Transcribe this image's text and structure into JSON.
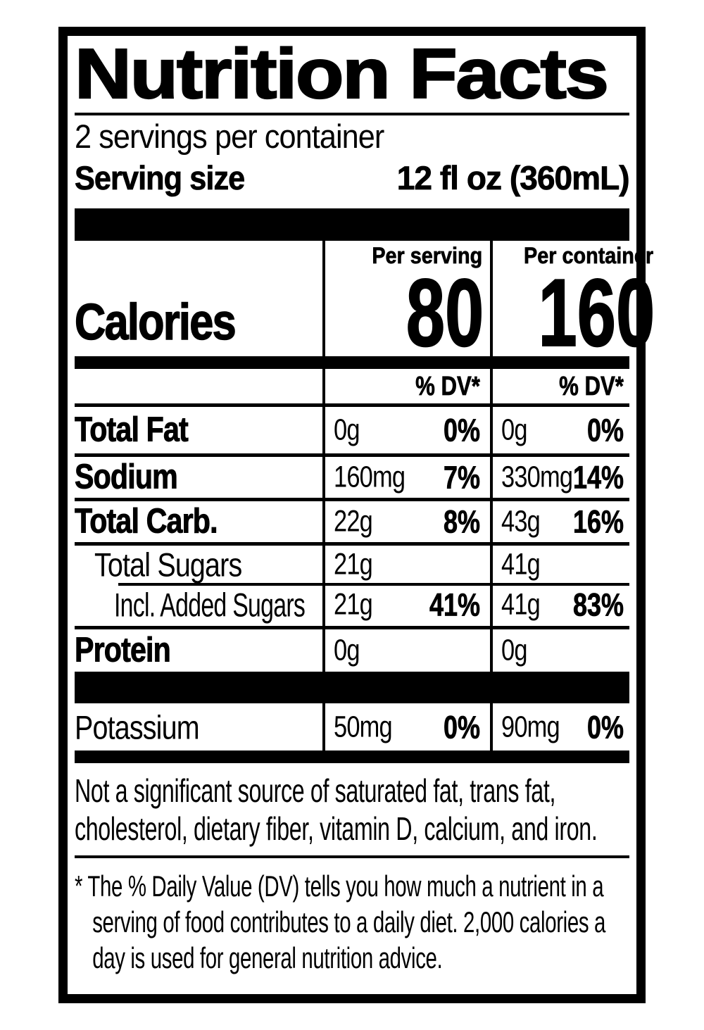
{
  "label": {
    "title": "Nutrition Facts",
    "servings_per_container": "2 servings per container",
    "serving_size": {
      "label": "Serving size",
      "value": "12 fl oz (360mL)"
    },
    "calories": {
      "name": "Calories",
      "per_serving_header": "Per serving",
      "per_container_header": "Per container",
      "per_serving_value": "80",
      "per_container_value": "160"
    },
    "dv_header": "% DV*",
    "nutrients": [
      {
        "name": "Total Fat",
        "serving_amount": "0g",
        "serving_dv": "0%",
        "container_amount": "0g",
        "container_dv": "0%"
      },
      {
        "name": "Sodium",
        "serving_amount": "160mg",
        "serving_dv": "7%",
        "container_amount": "330mg",
        "container_dv": "14%"
      },
      {
        "name": "Total Carb.",
        "serving_amount": "22g",
        "serving_dv": "8%",
        "container_amount": "43g",
        "container_dv": "16%"
      },
      {
        "name": "Total Sugars",
        "serving_amount": "21g",
        "serving_dv": "",
        "container_amount": "41g",
        "container_dv": ""
      },
      {
        "name": "Incl. Added Sugars",
        "serving_amount": "21g",
        "serving_dv": "41%",
        "container_amount": "41g",
        "container_dv": "83%"
      },
      {
        "name": "Protein",
        "serving_amount": "0g",
        "serving_dv": "",
        "container_amount": "0g",
        "container_dv": ""
      }
    ],
    "potassium": {
      "name": "Potassium",
      "serving_amount": "50mg",
      "serving_dv": "0%",
      "container_amount": "90mg",
      "container_dv": "0%"
    },
    "not_significant": "Not a significant source of saturated fat, trans fat, cholesterol, dietary fiber, vitamin D, calcium, and iron.",
    "footnote_marker": "*",
    "footnote_text": "The % Daily Value (DV) tells you how much a nutrient in a serving of food contributes to a daily diet. 2,000 calories a day is used for general nutrition advice."
  },
  "colors": {
    "ink": "#000000",
    "background": "#ffffff"
  }
}
